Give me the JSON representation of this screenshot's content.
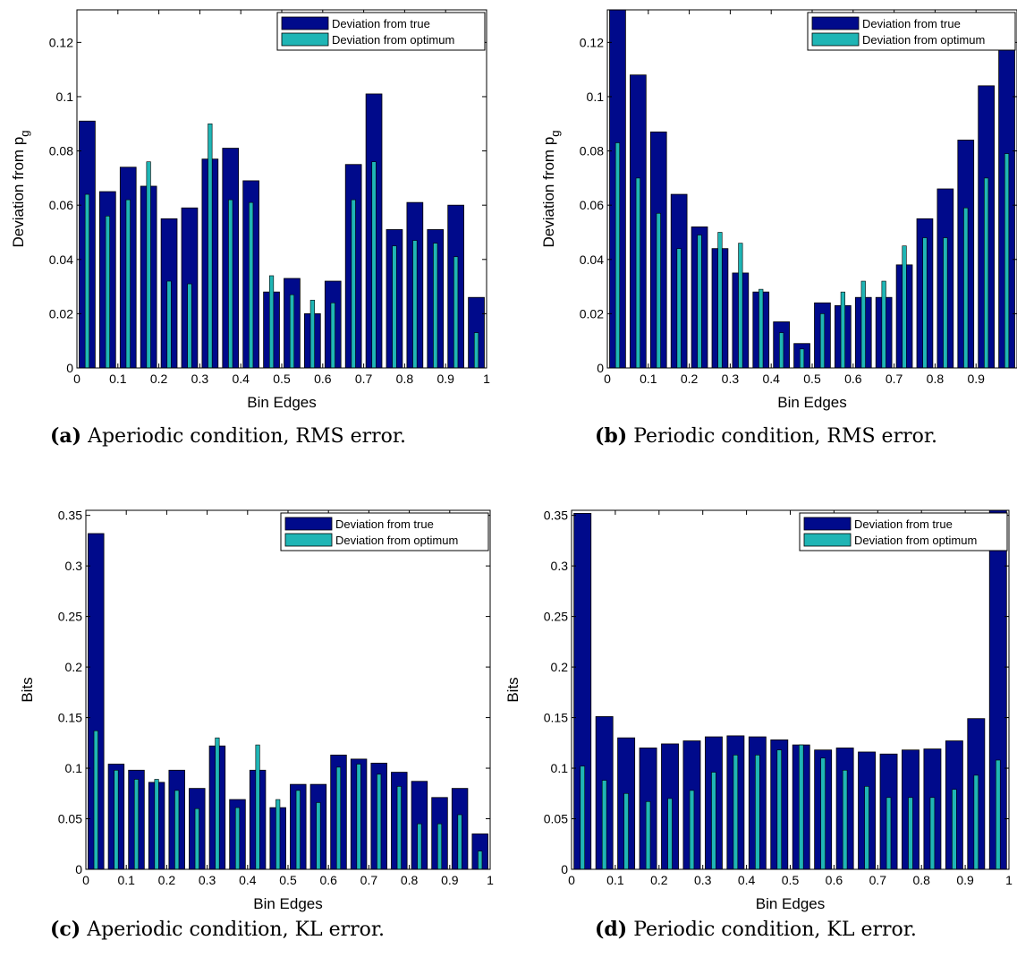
{
  "legend_labels": [
    "Deviation from true",
    "Deviation from optimum"
  ],
  "colors": {
    "true": "#000a8b",
    "optimum": "#1fb5b5",
    "bar_edge": "#000000"
  },
  "chart_data": [
    {
      "type": "bar",
      "id": "a",
      "caption_tag": "(a)",
      "caption_text": "Aperiodic condition, RMS error.",
      "xlabel": "Bin Edges",
      "ylabel": "Deviation from p_g",
      "ylabel_main": "Deviation from p",
      "ylabel_sub": "g",
      "xlim": [
        0,
        1
      ],
      "ylim": [
        0,
        0.132
      ],
      "xticks": [
        0,
        0.1,
        0.2,
        0.3,
        0.4,
        0.5,
        0.6,
        0.7,
        0.8,
        0.9,
        1
      ],
      "xtick_labels": [
        "0",
        "0.1",
        "0.2",
        "0.3",
        "0.4",
        "0.5",
        "0.6",
        "0.7",
        "0.8",
        "0.9",
        "1"
      ],
      "yticks": [
        0,
        0.02,
        0.04,
        0.06,
        0.08,
        0.1,
        0.12
      ],
      "ytick_labels": [
        "0",
        "0.02",
        "0.04",
        "0.06",
        "0.08",
        "0.1",
        "0.12"
      ],
      "grid": false,
      "legend": "top-right",
      "x": [
        0.025,
        0.075,
        0.125,
        0.175,
        0.225,
        0.275,
        0.325,
        0.375,
        0.425,
        0.475,
        0.525,
        0.575,
        0.625,
        0.675,
        0.725,
        0.775,
        0.825,
        0.875,
        0.925,
        0.975
      ],
      "series": [
        {
          "name": "Deviation from true",
          "values": [
            0.091,
            0.065,
            0.074,
            0.067,
            0.055,
            0.059,
            0.077,
            0.081,
            0.069,
            0.028,
            0.033,
            0.02,
            0.032,
            0.075,
            0.101,
            0.051,
            0.061,
            0.051,
            0.06,
            0.026
          ]
        },
        {
          "name": "Deviation from optimum",
          "values": [
            0.064,
            0.056,
            0.062,
            0.076,
            0.032,
            0.031,
            0.09,
            0.062,
            0.061,
            0.034,
            0.027,
            0.025,
            0.024,
            0.062,
            0.076,
            0.045,
            0.047,
            0.046,
            0.041,
            0.013
          ]
        }
      ]
    },
    {
      "type": "bar",
      "id": "b",
      "caption_tag": "(b)",
      "caption_text": "Periodic condition, RMS error.",
      "xlabel": "Bin Edges",
      "ylabel": "Deviation from p_g",
      "ylabel_main": "Deviation from p",
      "ylabel_sub": "g",
      "xlim": [
        0,
        1
      ],
      "ylim": [
        0,
        0.132
      ],
      "xticks": [
        0,
        0.1,
        0.2,
        0.3,
        0.4,
        0.5,
        0.6,
        0.7,
        0.8,
        0.9
      ],
      "xtick_labels": [
        "0",
        "0.1",
        "0.2",
        "0.3",
        "0.4",
        "0.5",
        "0.6",
        "0.7",
        "0.8",
        "0.9"
      ],
      "yticks": [
        0,
        0.02,
        0.04,
        0.06,
        0.08,
        0.1,
        0.12
      ],
      "ytick_labels": [
        "0",
        "0.02",
        "0.04",
        "0.06",
        "0.08",
        "0.1",
        "0.12"
      ],
      "grid": false,
      "legend": "top-right",
      "x": [
        0.025,
        0.075,
        0.125,
        0.175,
        0.225,
        0.275,
        0.325,
        0.375,
        0.425,
        0.475,
        0.525,
        0.575,
        0.625,
        0.675,
        0.725,
        0.775,
        0.825,
        0.875,
        0.925,
        0.975
      ],
      "series": [
        {
          "name": "Deviation from true",
          "values": [
            0.133,
            0.108,
            0.087,
            0.064,
            0.052,
            0.044,
            0.035,
            0.028,
            0.017,
            0.009,
            0.024,
            0.023,
            0.026,
            0.026,
            0.038,
            0.055,
            0.066,
            0.084,
            0.104,
            0.13
          ]
        },
        {
          "name": "Deviation from optimum",
          "values": [
            0.083,
            0.07,
            0.057,
            0.044,
            0.049,
            0.05,
            0.046,
            0.029,
            0.013,
            0.007,
            0.02,
            0.028,
            0.032,
            0.032,
            0.045,
            0.048,
            0.048,
            0.059,
            0.07,
            0.079
          ]
        }
      ]
    },
    {
      "type": "bar",
      "id": "c",
      "caption_tag": "(c)",
      "caption_text": "Aperiodic condition, KL error.",
      "xlabel": "Bin Edges",
      "ylabel": "Bits",
      "ylabel_main": "Bits",
      "ylabel_sub": "",
      "xlim": [
        0,
        1
      ],
      "ylim": [
        0,
        0.355
      ],
      "xticks": [
        0,
        0.1,
        0.2,
        0.3,
        0.4,
        0.5,
        0.6,
        0.7,
        0.8,
        0.9,
        1
      ],
      "xtick_labels": [
        "0",
        "0.1",
        "0.2",
        "0.3",
        "0.4",
        "0.5",
        "0.6",
        "0.7",
        "0.8",
        "0.9",
        "1"
      ],
      "yticks": [
        0,
        0.05,
        0.1,
        0.15,
        0.2,
        0.25,
        0.3,
        0.35
      ],
      "ytick_labels": [
        "0",
        "0.05",
        "0.1",
        "0.15",
        "0.2",
        "0.25",
        "0.3",
        "0.35"
      ],
      "grid": false,
      "legend": "top-right",
      "x": [
        0.025,
        0.075,
        0.125,
        0.175,
        0.225,
        0.275,
        0.325,
        0.375,
        0.425,
        0.475,
        0.525,
        0.575,
        0.625,
        0.675,
        0.725,
        0.775,
        0.825,
        0.875,
        0.925,
        0.975
      ],
      "series": [
        {
          "name": "Deviation from true",
          "values": [
            0.332,
            0.104,
            0.098,
            0.086,
            0.098,
            0.08,
            0.122,
            0.069,
            0.098,
            0.061,
            0.084,
            0.084,
            0.113,
            0.109,
            0.105,
            0.096,
            0.087,
            0.071,
            0.08,
            0.035
          ]
        },
        {
          "name": "Deviation from optimum",
          "values": [
            0.137,
            0.098,
            0.089,
            0.089,
            0.078,
            0.06,
            0.13,
            0.061,
            0.123,
            0.069,
            0.078,
            0.066,
            0.101,
            0.104,
            0.094,
            0.082,
            0.045,
            0.045,
            0.054,
            0.018
          ]
        }
      ]
    },
    {
      "type": "bar",
      "id": "d",
      "caption_tag": "(d)",
      "caption_text": "Periodic condition, KL error.",
      "xlabel": "Bin Edges",
      "ylabel": "Bits",
      "ylabel_main": "Bits",
      "ylabel_sub": "",
      "xlim": [
        0,
        1
      ],
      "ylim": [
        0,
        0.355
      ],
      "xticks": [
        0,
        0.1,
        0.2,
        0.3,
        0.4,
        0.5,
        0.6,
        0.7,
        0.8,
        0.9,
        1
      ],
      "xtick_labels": [
        "0",
        "0.1",
        "0.2",
        "0.3",
        "0.4",
        "0.5",
        "0.6",
        "0.7",
        "0.8",
        "0.9",
        "1"
      ],
      "yticks": [
        0,
        0.05,
        0.1,
        0.15,
        0.2,
        0.25,
        0.3,
        0.35
      ],
      "ytick_labels": [
        "0",
        "0.05",
        "0.1",
        "0.15",
        "0.2",
        "0.25",
        "0.3",
        "0.35"
      ],
      "grid": false,
      "legend": "top-right",
      "x": [
        0.025,
        0.075,
        0.125,
        0.175,
        0.225,
        0.275,
        0.325,
        0.375,
        0.425,
        0.475,
        0.525,
        0.575,
        0.625,
        0.675,
        0.725,
        0.775,
        0.825,
        0.875,
        0.925,
        0.975
      ],
      "series": [
        {
          "name": "Deviation from true",
          "values": [
            0.352,
            0.151,
            0.13,
            0.12,
            0.124,
            0.127,
            0.131,
            0.132,
            0.131,
            0.128,
            0.123,
            0.118,
            0.12,
            0.116,
            0.114,
            0.118,
            0.119,
            0.127,
            0.149,
            0.358
          ]
        },
        {
          "name": "Deviation from optimum",
          "values": [
            0.102,
            0.088,
            0.075,
            0.067,
            0.07,
            0.078,
            0.096,
            0.113,
            0.113,
            0.118,
            0.123,
            0.11,
            0.098,
            0.082,
            0.071,
            0.071,
            0.071,
            0.079,
            0.093,
            0.108
          ]
        }
      ]
    }
  ]
}
